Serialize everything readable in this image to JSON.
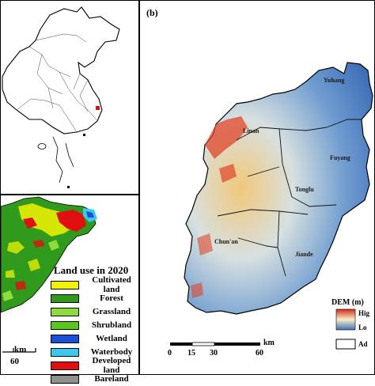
{
  "panel_b": {
    "label": "(b)",
    "places": [
      "Linan",
      "Yuhang",
      "Fuyang",
      "Tonglu",
      "Chun'an",
      "Jiande"
    ],
    "dem_legend": {
      "title": "DEM (m)",
      "high": "Hig",
      "low": "Lo",
      "boundary": "Ad"
    },
    "scale": {
      "ticks": [
        "0",
        "15",
        "30",
        "60"
      ],
      "unit": "km"
    }
  },
  "panel_a": {
    "legend_title": "Land use in 2020",
    "classes": [
      {
        "label": "Cultivated land",
        "color": "#f2f200"
      },
      {
        "label": "Forest",
        "color": "#2f9a1c"
      },
      {
        "label": "Grassland",
        "color": "#8edc3c"
      },
      {
        "label": "Shrubland",
        "color": "#58c81e"
      },
      {
        "label": "Wetland",
        "color": "#1c4fd8"
      },
      {
        "label": "Waterbody",
        "color": "#3cc8f0"
      },
      {
        "label": "Developed land",
        "color": "#e01010"
      },
      {
        "label": "Bareland",
        "color": "#909090"
      }
    ],
    "scale": {
      "tick": "60",
      "unit": "km"
    }
  }
}
